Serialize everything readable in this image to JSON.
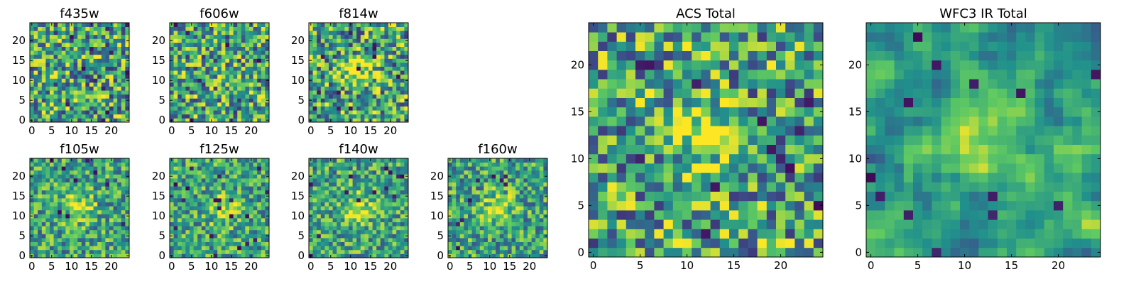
{
  "chart_data": {
    "type": "heatmap",
    "colormap": [
      "#440154",
      "#3b528b",
      "#21918c",
      "#5ec962",
      "#fde725"
    ],
    "panels": [
      {
        "title": "f435w",
        "xticks": [
          0,
          5,
          10,
          15,
          20
        ],
        "yticks": [
          0,
          5,
          10,
          15,
          20
        ],
        "xlim": [
          0,
          25
        ],
        "ylim": [
          0,
          25
        ],
        "pixels": [
          25,
          25
        ],
        "hotspot": null,
        "noise": "high"
      },
      {
        "title": "f606w",
        "xticks": [
          0,
          5,
          10,
          15,
          20
        ],
        "yticks": [
          0,
          5,
          10,
          15,
          20
        ],
        "xlim": [
          0,
          25
        ],
        "ylim": [
          0,
          25
        ],
        "pixels": [
          25,
          25
        ],
        "hotspot": null,
        "noise": "high"
      },
      {
        "title": "f814w",
        "xticks": [
          0,
          5,
          10,
          15,
          20
        ],
        "yticks": [
          0,
          5,
          10,
          15,
          20
        ],
        "xlim": [
          0,
          25
        ],
        "ylim": [
          0,
          25
        ],
        "pixels": [
          25,
          25
        ],
        "hotspot": [
          12,
          12
        ],
        "noise": "high"
      },
      {
        "title": "f105w",
        "xticks": [
          0,
          5,
          10,
          15,
          20
        ],
        "yticks": [
          0,
          5,
          10,
          15,
          20
        ],
        "xlim": [
          0,
          25
        ],
        "ylim": [
          0,
          25
        ],
        "pixels": [
          25,
          25
        ],
        "hotspot": [
          12,
          12
        ],
        "noise": "medium"
      },
      {
        "title": "f125w",
        "xticks": [
          0,
          5,
          10,
          15,
          20
        ],
        "yticks": [
          0,
          5,
          10,
          15,
          20
        ],
        "xlim": [
          0,
          25
        ],
        "ylim": [
          0,
          25
        ],
        "pixels": [
          25,
          25
        ],
        "hotspot": [
          13,
          12
        ],
        "noise": "medium"
      },
      {
        "title": "f140w",
        "xticks": [
          0,
          5,
          10,
          15,
          20
        ],
        "yticks": [
          0,
          5,
          10,
          15,
          20
        ],
        "xlim": [
          0,
          25
        ],
        "ylim": [
          0,
          25
        ],
        "pixels": [
          25,
          25
        ],
        "hotspot": [
          12,
          12
        ],
        "noise": "medium"
      },
      {
        "title": "f160w",
        "xticks": [
          0,
          5,
          10,
          15,
          20
        ],
        "yticks": [
          0,
          5,
          10,
          15,
          20
        ],
        "xlim": [
          0,
          25
        ],
        "ylim": [
          0,
          25
        ],
        "pixels": [
          25,
          25
        ],
        "hotspot": [
          12,
          12
        ],
        "noise": "medium"
      },
      {
        "title": "ACS Total",
        "xticks": [
          0,
          5,
          10,
          15,
          20
        ],
        "yticks": [
          0,
          5,
          10,
          15,
          20
        ],
        "xlim": [
          0,
          25
        ],
        "ylim": [
          0,
          25
        ],
        "pixels": [
          25,
          25
        ],
        "hotspot": [
          12,
          13
        ],
        "noise": "high"
      },
      {
        "title": "WFC3 IR Total",
        "xticks": [
          0,
          5,
          10,
          15,
          20
        ],
        "yticks": [
          0,
          5,
          10,
          15,
          20
        ],
        "xlim": [
          0,
          25
        ],
        "ylim": [
          0,
          25
        ],
        "pixels": [
          25,
          25
        ],
        "hotspot": [
          12,
          12
        ],
        "noise": "low"
      }
    ]
  }
}
